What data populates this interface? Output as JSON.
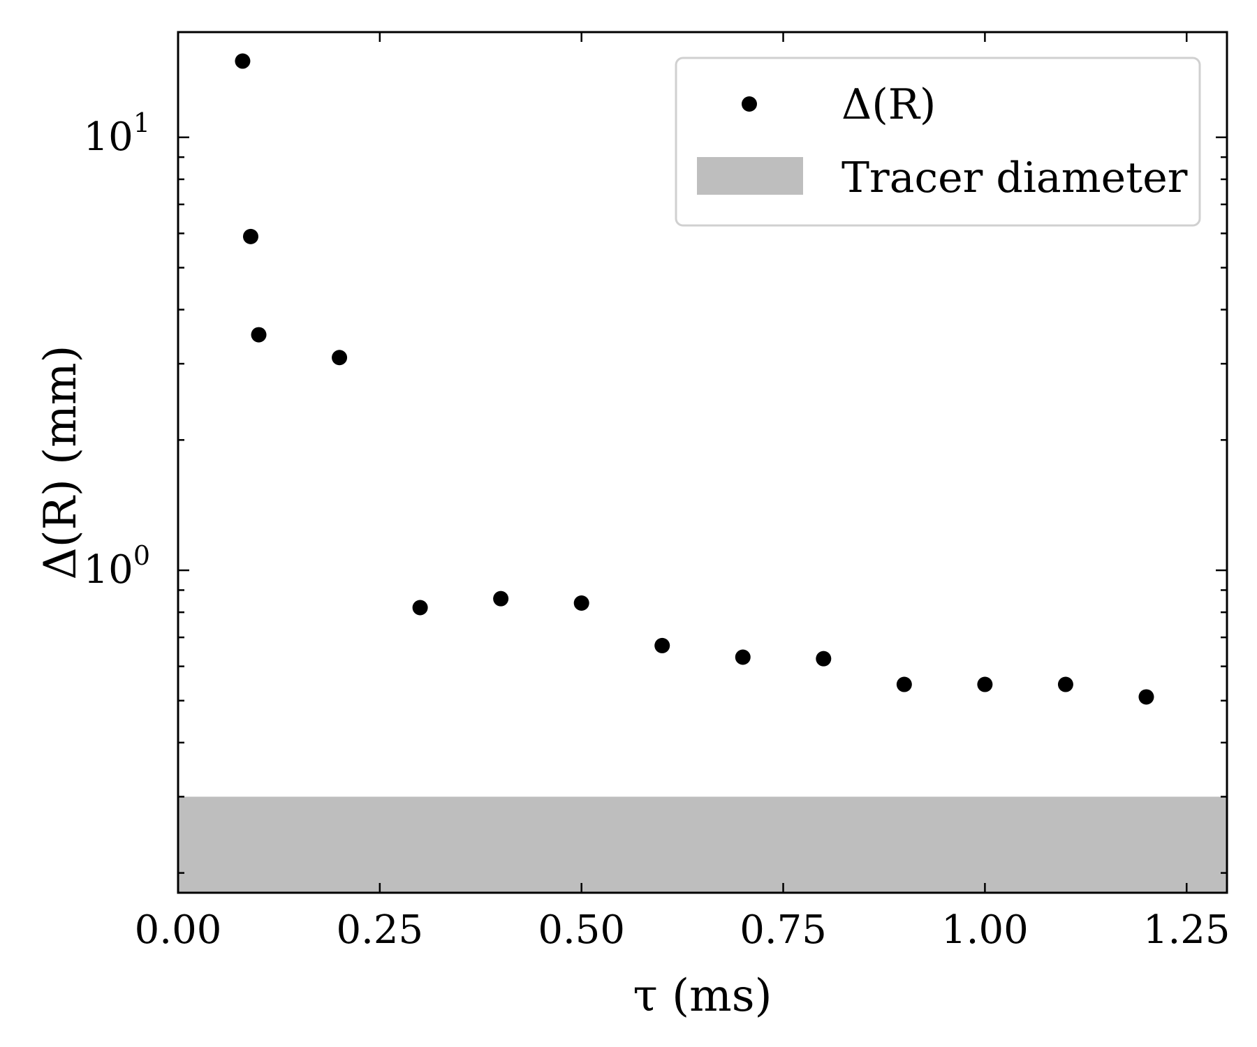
{
  "chart_data": {
    "type": "scatter",
    "xlabel": "τ (ms)",
    "ylabel": "Δ(R) (mm)",
    "xlim": [
      0.0,
      1.3
    ],
    "ylim": [
      0.18,
      17.5
    ],
    "yscale": "log",
    "grid": false,
    "legend_position": "top-right",
    "x_ticks": [
      0.0,
      0.25,
      0.5,
      0.75,
      1.0,
      1.25
    ],
    "x_tick_labels": [
      "0.00",
      "0.25",
      "0.50",
      "0.75",
      "1.00",
      "1.25"
    ],
    "y_ticks": [
      1,
      10
    ],
    "y_tick_labels": [
      {
        "base": "10",
        "exp": "0"
      },
      {
        "base": "10",
        "exp": "1"
      }
    ],
    "series": [
      {
        "name": "Δ(R)",
        "color": "#000000",
        "x": [
          0.08,
          0.09,
          0.1,
          0.2,
          0.3,
          0.4,
          0.5,
          0.6,
          0.7,
          0.8,
          0.9,
          1.0,
          1.1,
          1.2
        ],
        "y": [
          15.0,
          5.9,
          3.5,
          3.1,
          0.82,
          0.86,
          0.84,
          0.67,
          0.63,
          0.625,
          0.545,
          0.545,
          0.545,
          0.51
        ]
      }
    ],
    "band": {
      "name": "Tracer diameter",
      "color": "#bebebe",
      "y_range": [
        0.18,
        0.3
      ]
    }
  }
}
